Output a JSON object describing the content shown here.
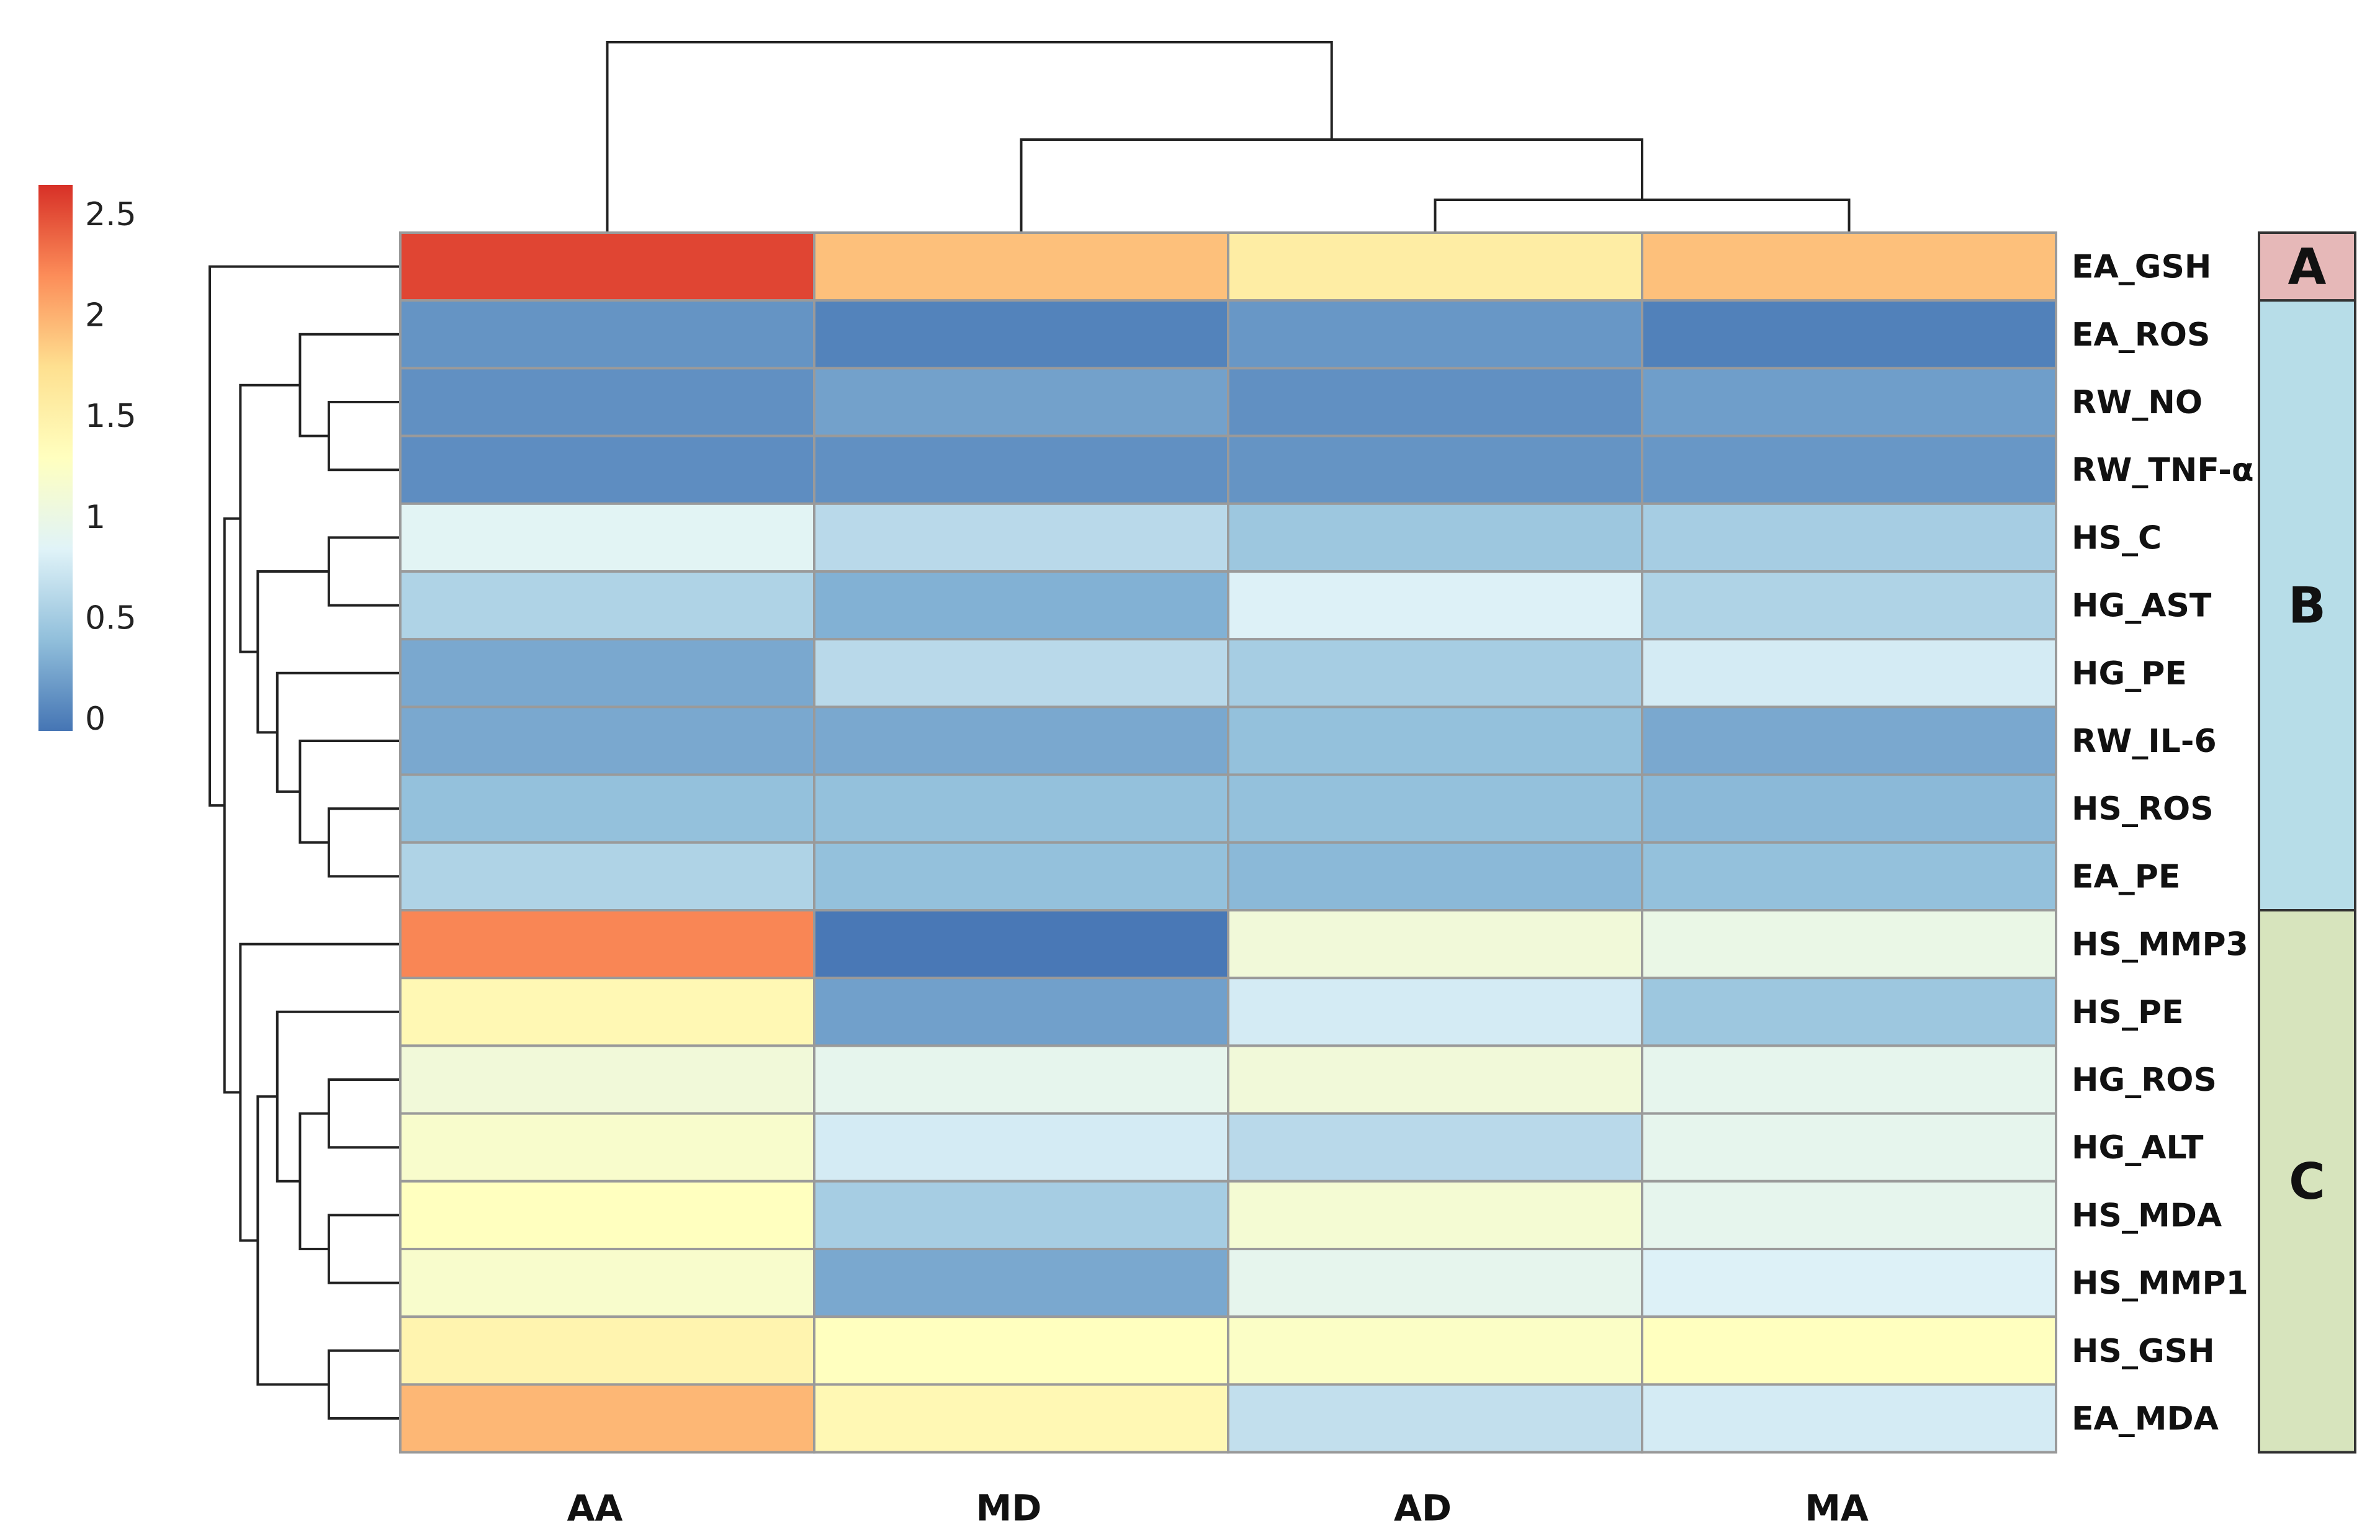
{
  "chart_data": {
    "type": "heatmap",
    "title": "",
    "columns": [
      "AA",
      "MD",
      "AD",
      "MA"
    ],
    "rows": [
      {
        "label": "EA_GSH",
        "values": [
          2.5,
          1.9,
          1.55,
          1.9
        ]
      },
      {
        "label": "EA_ROS",
        "values": [
          0.18,
          0.08,
          0.2,
          0.07
        ]
      },
      {
        "label": "RW_NO",
        "values": [
          0.16,
          0.26,
          0.16,
          0.24
        ]
      },
      {
        "label": "RW_TNF-α",
        "values": [
          0.14,
          0.16,
          0.18,
          0.2
        ]
      },
      {
        "label": "HS_C",
        "values": [
          0.9,
          0.65,
          0.5,
          0.55
        ]
      },
      {
        "label": "HG_AST",
        "values": [
          0.6,
          0.35,
          0.85,
          0.6
        ]
      },
      {
        "label": "HG_PE",
        "values": [
          0.3,
          0.65,
          0.55,
          0.8
        ]
      },
      {
        "label": "RW_IL-6",
        "values": [
          0.3,
          0.3,
          0.45,
          0.3
        ]
      },
      {
        "label": "HS_ROS",
        "values": [
          0.45,
          0.45,
          0.45,
          0.4
        ]
      },
      {
        "label": "EA_PE",
        "values": [
          0.6,
          0.45,
          0.4,
          0.45
        ]
      },
      {
        "label": "HS_MMP3",
        "values": [
          2.2,
          0.02,
          1.1,
          1.0
        ]
      },
      {
        "label": "HS_PE",
        "values": [
          1.4,
          0.25,
          0.8,
          0.5
        ]
      },
      {
        "label": "HG_ROS",
        "values": [
          1.1,
          0.95,
          1.1,
          0.95
        ]
      },
      {
        "label": "HG_ALT",
        "values": [
          1.2,
          0.8,
          0.65,
          0.95
        ]
      },
      {
        "label": "HS_MDA",
        "values": [
          1.3,
          0.55,
          1.15,
          0.95
        ]
      },
      {
        "label": "HS_MMP1",
        "values": [
          1.2,
          0.3,
          0.95,
          0.85
        ]
      },
      {
        "label": "HS_GSH",
        "values": [
          1.45,
          1.3,
          1.25,
          1.3
        ]
      },
      {
        "label": "EA_MDA",
        "values": [
          1.95,
          1.4,
          0.7,
          0.8
        ]
      }
    ],
    "colorscale": {
      "min": 0,
      "max": 2.6,
      "ticks": [
        "2.5",
        "2",
        "1.5",
        "1",
        "0.5",
        "0"
      ],
      "tick_values": [
        2.5,
        2,
        1.5,
        1,
        0.5,
        0
      ],
      "colors": [
        "#4575b4",
        "#91bfdb",
        "#e0f3f8",
        "#ffffbf",
        "#fee090",
        "#fc8d59",
        "#d73027"
      ]
    },
    "groups": [
      {
        "label": "A",
        "from_row": 0,
        "to_row": 0,
        "color": "#e6b8b8"
      },
      {
        "label": "B",
        "from_row": 1,
        "to_row": 9,
        "color": "#b7dde8"
      },
      {
        "label": "C",
        "from_row": 10,
        "to_row": 17,
        "color": "#d7e4bd"
      }
    ],
    "column_dendrogram": "(AA,(MD,(AD,MA)))",
    "row_dendrogram": "(EA_GSH,(((EA_ROS,(RW_NO,RW_TNF-α)),((HS_C,HG_AST),(HG_PE,(RW_IL-6,(HS_ROS,EA_PE))))),(HS_MMP3,((HS_PE,((HG_ROS,HG_ALT),(HS_MDA,HS_MMP1))),(HS_GSH,EA_MDA)))))"
  }
}
